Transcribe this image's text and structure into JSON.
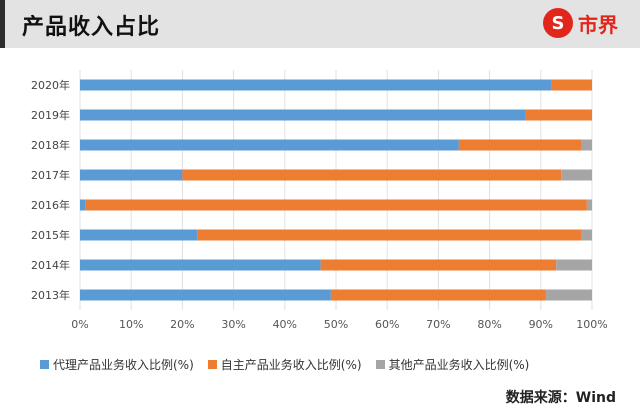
{
  "header": {
    "title": "产品收入占比",
    "logo_text": "市界",
    "logo_mark": "S"
  },
  "source": "数据来源：Wind",
  "colors": {
    "agency": "#5b9bd5",
    "own": "#ed7d31",
    "other": "#a5a5a5"
  },
  "chart_data": {
    "type": "bar",
    "orientation": "horizontal",
    "stacked": true,
    "categories": [
      "2020年",
      "2019年",
      "2018年",
      "2017年",
      "2016年",
      "2015年",
      "2014年",
      "2013年"
    ],
    "series": [
      {
        "name": "代理产品业务收入比例(%)",
        "values": [
          92,
          87,
          74,
          20,
          1,
          23,
          47,
          49
        ]
      },
      {
        "name": "自主产品业务收入比例(%)",
        "values": [
          8,
          13,
          24,
          74,
          98,
          75,
          46,
          42
        ]
      },
      {
        "name": "其他产品业务收入比例(%)",
        "values": [
          0,
          0,
          2,
          6,
          1,
          2,
          7,
          9
        ]
      }
    ],
    "xticks": [
      "0%",
      "10%",
      "20%",
      "30%",
      "40%",
      "50%",
      "60%",
      "70%",
      "80%",
      "90%",
      "100%"
    ],
    "xlim": [
      0,
      100
    ],
    "grid": true,
    "legend_position": "bottom"
  }
}
